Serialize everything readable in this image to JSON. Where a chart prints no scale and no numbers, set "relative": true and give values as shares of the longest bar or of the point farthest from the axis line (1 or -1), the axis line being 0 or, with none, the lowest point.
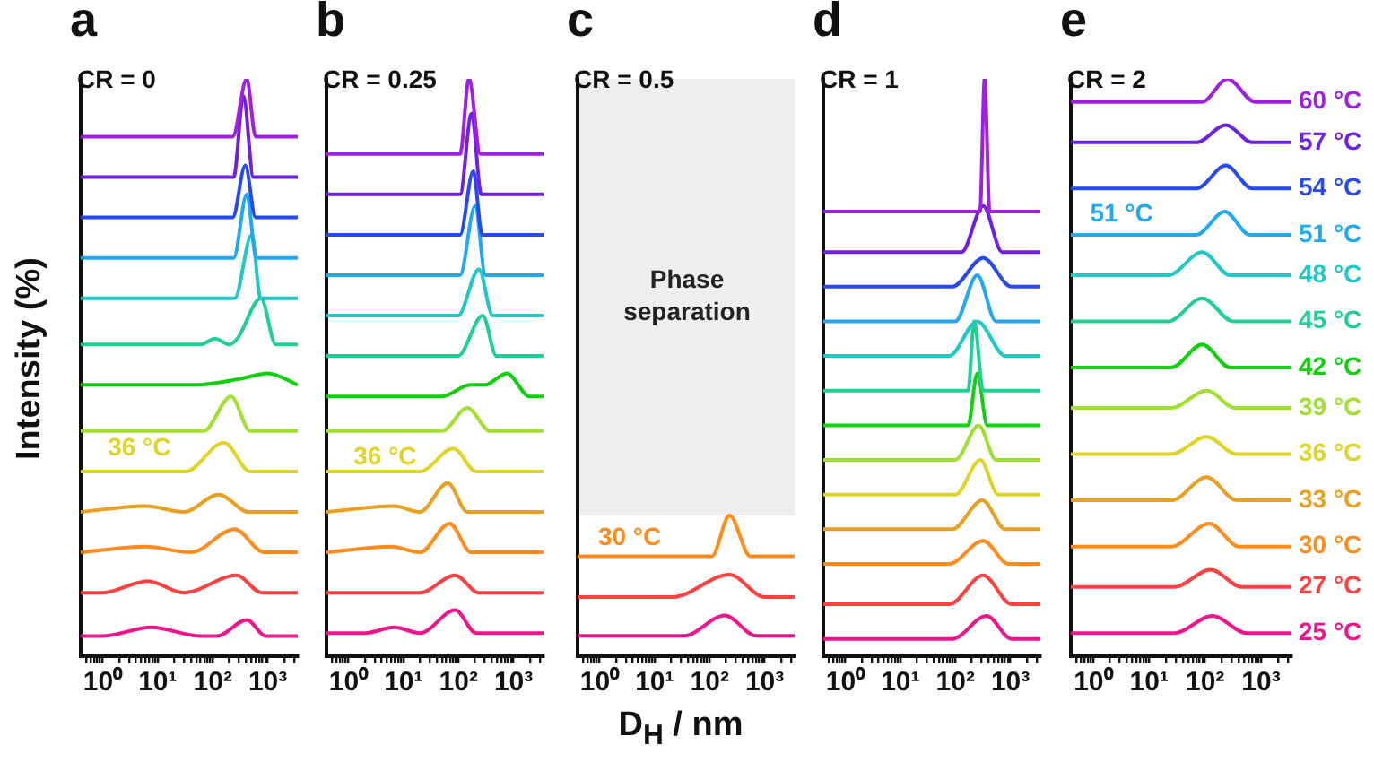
{
  "chart_data": [
    {
      "type": "line",
      "title": "a",
      "subtitle": "CR = 0",
      "ylabel": "Intensity (%)",
      "relative": true,
      "log": "x",
      "xlim": [
        0.4,
        3500
      ],
      "xticks": [
        {
          "value": 0.5,
          "label": null
        },
        {
          "value": 0.6,
          "label": null
        },
        {
          "value": 0.7,
          "label": null
        },
        {
          "value": 0.8,
          "label": null
        },
        {
          "value": 0.9,
          "label": null
        },
        {
          "value": 1,
          "label": "10⁰"
        },
        {
          "value": 2,
          "label": null
        },
        {
          "value": 3,
          "label": null
        },
        {
          "value": 4,
          "label": null
        },
        {
          "value": 5,
          "label": null
        },
        {
          "value": 6,
          "label": null
        },
        {
          "value": 7,
          "label": null
        },
        {
          "value": 8,
          "label": null
        },
        {
          "value": 9,
          "label": null
        },
        {
          "value": 10,
          "label": "10¹"
        },
        {
          "value": 20,
          "label": null
        },
        {
          "value": 30,
          "label": null
        },
        {
          "value": 40,
          "label": null
        },
        {
          "value": 50,
          "label": null
        },
        {
          "value": 60,
          "label": null
        },
        {
          "value": 70,
          "label": null
        },
        {
          "value": 80,
          "label": null
        },
        {
          "value": 90,
          "label": null
        },
        {
          "value": 100,
          "label": "10²"
        },
        {
          "value": 200,
          "label": null
        },
        {
          "value": 300,
          "label": null
        },
        {
          "value": 400,
          "label": null
        },
        {
          "value": 500,
          "label": null
        },
        {
          "value": 600,
          "label": null
        },
        {
          "value": 700,
          "label": null
        },
        {
          "value": 800,
          "label": null
        },
        {
          "value": 900,
          "label": null
        },
        {
          "value": 1000,
          "label": "10³"
        },
        {
          "value": 2000,
          "label": null
        },
        {
          "value": 3000,
          "label": null
        }
      ],
      "annotations": [
        "36 °C"
      ],
      "series": [
        {
          "color": "#a020e0",
          "x": [
            0.4,
            230,
            415,
            600,
            3500
          ],
          "values": [
            0.9,
            0.9,
            1.0,
            0.9,
            0.9
          ]
        },
        {
          "color": "#7020e0",
          "x": [
            0.4,
            240,
            360,
            550,
            3500
          ],
          "values": [
            0.83,
            0.83,
            0.97,
            0.83,
            0.83
          ]
        },
        {
          "color": "#2848f0",
          "x": [
            0.4,
            230,
            390,
            600,
            3500
          ],
          "values": [
            0.76,
            0.76,
            0.85,
            0.76,
            0.76
          ]
        },
        {
          "color": "#20a8f0",
          "x": [
            0.4,
            240,
            415,
            620,
            3500
          ],
          "values": [
            0.69,
            0.69,
            0.8,
            0.69,
            0.69
          ]
        },
        {
          "color": "#20c8c8",
          "x": [
            0.4,
            250,
            510,
            740,
            3500
          ],
          "values": [
            0.62,
            0.62,
            0.73,
            0.62,
            0.62
          ]
        },
        {
          "color": "#20d090",
          "x": [
            0.4,
            60,
            110,
            200,
            280,
            750,
            1400,
            3500
          ],
          "values": [
            0.54,
            0.54,
            0.55,
            0.54,
            0.55,
            0.62,
            0.54,
            0.54
          ]
        },
        {
          "color": "#10d010",
          "x": [
            0.4,
            50,
            300,
            1000,
            3500
          ],
          "values": [
            0.47,
            0.47,
            0.48,
            0.49,
            0.47
          ]
        },
        {
          "color": "#a0e030",
          "x": [
            0.4,
            68,
            215,
            480,
            3500
          ],
          "values": [
            0.39,
            0.39,
            0.45,
            0.39,
            0.39
          ]
        },
        {
          "color": "#e0d428",
          "x": [
            0.4,
            32,
            160,
            480,
            3500
          ],
          "values": [
            0.32,
            0.32,
            0.37,
            0.32,
            0.32
          ]
        },
        {
          "color": "#e8a020",
          "x": [
            0.4,
            6,
            30,
            128,
            450,
            3500
          ],
          "values": [
            0.25,
            0.26,
            0.25,
            0.28,
            0.25,
            0.25
          ]
        },
        {
          "color": "#ff8c1a",
          "x": [
            0.4,
            6,
            40,
            250,
            860,
            3500
          ],
          "values": [
            0.18,
            0.19,
            0.18,
            0.22,
            0.18,
            0.18
          ]
        },
        {
          "color": "#ff4040",
          "x": [
            0.4,
            1,
            6.6,
            30,
            270,
            780,
            3500
          ],
          "values": [
            0.11,
            0.11,
            0.13,
            0.11,
            0.14,
            0.11,
            0.11
          ]
        },
        {
          "color": "#f0148c",
          "x": [
            0.4,
            1,
            7.6,
            60,
            120,
            415,
            920,
            3500
          ],
          "values": [
            0.035,
            0.035,
            0.05,
            0.035,
            0.035,
            0.063,
            0.035,
            0.035
          ]
        }
      ]
    },
    {
      "type": "line",
      "title": "b",
      "subtitle": "CR = 0.25",
      "relative": true,
      "log": "x",
      "xlim": [
        0.4,
        3500
      ],
      "xticks": [
        {
          "value": 0.5,
          "label": null
        },
        {
          "value": 0.6,
          "label": null
        },
        {
          "value": 0.7,
          "label": null
        },
        {
          "value": 0.8,
          "label": null
        },
        {
          "value": 0.9,
          "label": null
        },
        {
          "value": 1,
          "label": "10⁰"
        },
        {
          "value": 2,
          "label": null
        },
        {
          "value": 3,
          "label": null
        },
        {
          "value": 4,
          "label": null
        },
        {
          "value": 5,
          "label": null
        },
        {
          "value": 6,
          "label": null
        },
        {
          "value": 7,
          "label": null
        },
        {
          "value": 8,
          "label": null
        },
        {
          "value": 9,
          "label": null
        },
        {
          "value": 10,
          "label": "10¹"
        },
        {
          "value": 20,
          "label": null
        },
        {
          "value": 30,
          "label": null
        },
        {
          "value": 40,
          "label": null
        },
        {
          "value": 50,
          "label": null
        },
        {
          "value": 60,
          "label": null
        },
        {
          "value": 70,
          "label": null
        },
        {
          "value": 80,
          "label": null
        },
        {
          "value": 90,
          "label": null
        },
        {
          "value": 100,
          "label": "10²"
        },
        {
          "value": 200,
          "label": null
        },
        {
          "value": 300,
          "label": null
        },
        {
          "value": 400,
          "label": null
        },
        {
          "value": 500,
          "label": null
        },
        {
          "value": 600,
          "label": null
        },
        {
          "value": 700,
          "label": null
        },
        {
          "value": 800,
          "label": null
        },
        {
          "value": 900,
          "label": null
        },
        {
          "value": 1000,
          "label": "10³"
        },
        {
          "value": 2000,
          "label": null
        },
        {
          "value": 3000,
          "label": null
        }
      ],
      "annotations": [
        "36 °C"
      ],
      "series": [
        {
          "color": "#a020e0",
          "x": [
            0.4,
            107,
            155,
            250,
            3500
          ],
          "values": [
            0.87,
            0.87,
            1.0,
            0.87,
            0.87
          ]
        },
        {
          "color": "#7020e0",
          "x": [
            0.4,
            107,
            173,
            260,
            3500
          ],
          "values": [
            0.8,
            0.8,
            0.94,
            0.8,
            0.8
          ]
        },
        {
          "color": "#2848f0",
          "x": [
            0.4,
            107,
            185,
            270,
            3500
          ],
          "values": [
            0.73,
            0.73,
            0.84,
            0.73,
            0.73
          ]
        },
        {
          "color": "#20a8f0",
          "x": [
            0.4,
            107,
            200,
            310,
            3500
          ],
          "values": [
            0.66,
            0.66,
            0.78,
            0.66,
            0.66
          ]
        },
        {
          "color": "#20c8c8",
          "x": [
            0.4,
            98,
            235,
            420,
            3500
          ],
          "values": [
            0.59,
            0.59,
            0.67,
            0.59,
            0.59
          ]
        },
        {
          "color": "#20d090",
          "x": [
            0.4,
            98,
            275,
            490,
            3500
          ],
          "values": [
            0.52,
            0.52,
            0.59,
            0.52,
            0.52
          ]
        },
        {
          "color": "#10d010",
          "x": [
            0.4,
            50,
            165,
            300,
            760,
            1950,
            3500
          ],
          "values": [
            0.45,
            0.45,
            0.47,
            0.47,
            0.49,
            0.45,
            0.45
          ]
        },
        {
          "color": "#a0e030",
          "x": [
            0.4,
            50,
            145,
            375,
            3500
          ],
          "values": [
            0.39,
            0.39,
            0.43,
            0.39,
            0.39
          ]
        },
        {
          "color": "#e0d428",
          "x": [
            0.4,
            20,
            81,
            210,
            3500
          ],
          "values": [
            0.32,
            0.32,
            0.36,
            0.32,
            0.32
          ]
        },
        {
          "color": "#e8a020",
          "x": [
            0.4,
            6.8,
            20,
            64,
            145,
            3500
          ],
          "values": [
            0.25,
            0.26,
            0.25,
            0.3,
            0.25,
            0.25
          ]
        },
        {
          "color": "#ff8c1a",
          "x": [
            0.4,
            6,
            20,
            69,
            170,
            3500
          ],
          "values": [
            0.18,
            0.19,
            0.18,
            0.23,
            0.18,
            0.18
          ]
        },
        {
          "color": "#ff4040",
          "x": [
            0.4,
            20,
            87,
            235,
            3500
          ],
          "values": [
            0.11,
            0.11,
            0.14,
            0.11,
            0.11
          ]
        },
        {
          "color": "#f0148c",
          "x": [
            0.4,
            2,
            6.8,
            20,
            87,
            210,
            3500
          ],
          "values": [
            0.04,
            0.04,
            0.05,
            0.04,
            0.08,
            0.04,
            0.04
          ]
        }
      ]
    },
    {
      "type": "line",
      "title": "c",
      "subtitle": "CR = 0.5",
      "xlabel": "D$_{H}$ / nm",
      "relative": true,
      "log": "x",
      "xlim": [
        0.4,
        3500
      ],
      "xticks": [
        {
          "value": 0.5,
          "label": null
        },
        {
          "value": 0.6,
          "label": null
        },
        {
          "value": 0.7,
          "label": null
        },
        {
          "value": 0.8,
          "label": null
        },
        {
          "value": 0.9,
          "label": null
        },
        {
          "value": 1,
          "label": "10⁰"
        },
        {
          "value": 2,
          "label": null
        },
        {
          "value": 3,
          "label": null
        },
        {
          "value": 4,
          "label": null
        },
        {
          "value": 5,
          "label": null
        },
        {
          "value": 6,
          "label": null
        },
        {
          "value": 7,
          "label": null
        },
        {
          "value": 8,
          "label": null
        },
        {
          "value": 9,
          "label": null
        },
        {
          "value": 10,
          "label": "10¹"
        },
        {
          "value": 20,
          "label": null
        },
        {
          "value": 30,
          "label": null
        },
        {
          "value": 40,
          "label": null
        },
        {
          "value": 50,
          "label": null
        },
        {
          "value": 60,
          "label": null
        },
        {
          "value": 70,
          "label": null
        },
        {
          "value": 80,
          "label": null
        },
        {
          "value": 90,
          "label": null
        },
        {
          "value": 100,
          "label": "10²"
        },
        {
          "value": 200,
          "label": null
        },
        {
          "value": 300,
          "label": null
        },
        {
          "value": 400,
          "label": null
        },
        {
          "value": 500,
          "label": null
        },
        {
          "value": 600,
          "label": null
        },
        {
          "value": 700,
          "label": null
        },
        {
          "value": 800,
          "label": null
        },
        {
          "value": 900,
          "label": null
        },
        {
          "value": 1000,
          "label": "10³"
        },
        {
          "value": 2000,
          "label": null
        },
        {
          "value": 3000,
          "label": null
        }
      ],
      "bands": [
        {
          "axis": "y",
          "from": 1.0,
          "to": 4.1,
          "label": "Phase separation",
          "color": "#eeeeee"
        }
      ],
      "annotations": [
        "30 °C"
      ],
      "series": [
        {
          "color": "#ff8c1a",
          "x": [
            0.4,
            110,
            230,
            550,
            3500
          ],
          "values": [
            0.71,
            0.71,
            1.0,
            0.71,
            0.71
          ]
        },
        {
          "color": "#ff4040",
          "x": [
            0.4,
            21,
            230,
            1000,
            3500
          ],
          "values": [
            0.42,
            0.42,
            0.58,
            0.42,
            0.42
          ]
        },
        {
          "color": "#f0148c",
          "x": [
            0.4,
            34,
            190,
            700,
            3500
          ],
          "values": [
            0.145,
            0.145,
            0.29,
            0.145,
            0.145
          ]
        }
      ]
    },
    {
      "type": "line",
      "title": "d",
      "subtitle": "CR = 1",
      "relative": true,
      "log": "x",
      "xlim": [
        0.4,
        3500
      ],
      "xticks": [
        {
          "value": 0.5,
          "label": null
        },
        {
          "value": 0.6,
          "label": null
        },
        {
          "value": 0.7,
          "label": null
        },
        {
          "value": 0.8,
          "label": null
        },
        {
          "value": 0.9,
          "label": null
        },
        {
          "value": 1,
          "label": "10⁰"
        },
        {
          "value": 2,
          "label": null
        },
        {
          "value": 3,
          "label": null
        },
        {
          "value": 4,
          "label": null
        },
        {
          "value": 5,
          "label": null
        },
        {
          "value": 6,
          "label": null
        },
        {
          "value": 7,
          "label": null
        },
        {
          "value": 8,
          "label": null
        },
        {
          "value": 9,
          "label": null
        },
        {
          "value": 10,
          "label": "10¹"
        },
        {
          "value": 20,
          "label": null
        },
        {
          "value": 30,
          "label": null
        },
        {
          "value": 40,
          "label": null
        },
        {
          "value": 50,
          "label": null
        },
        {
          "value": 60,
          "label": null
        },
        {
          "value": 70,
          "label": null
        },
        {
          "value": 80,
          "label": null
        },
        {
          "value": 90,
          "label": null
        },
        {
          "value": 100,
          "label": "10²"
        },
        {
          "value": 200,
          "label": null
        },
        {
          "value": 300,
          "label": null
        },
        {
          "value": 400,
          "label": null
        },
        {
          "value": 500,
          "label": null
        },
        {
          "value": 600,
          "label": null
        },
        {
          "value": 700,
          "label": null
        },
        {
          "value": 800,
          "label": null
        },
        {
          "value": 900,
          "label": null
        },
        {
          "value": 1000,
          "label": "10³"
        },
        {
          "value": 2000,
          "label": null
        },
        {
          "value": 3000,
          "label": null
        }
      ],
      "series": [
        {
          "color": "#a020e0",
          "x": [
            0.4,
            280,
            340,
            420,
            3500
          ],
          "values": [
            0.77,
            0.77,
            1.0,
            0.77,
            0.77
          ]
        },
        {
          "color": "#7020e0",
          "x": [
            0.4,
            130,
            320,
            710,
            3500
          ],
          "values": [
            0.7,
            0.7,
            0.78,
            0.7,
            0.7
          ]
        },
        {
          "color": "#2848f0",
          "x": [
            0.4,
            88,
            320,
            1050,
            3500
          ],
          "values": [
            0.64,
            0.64,
            0.69,
            0.64,
            0.64
          ]
        },
        {
          "color": "#20a8f0",
          "x": [
            0.4,
            100,
            250,
            550,
            3500
          ],
          "values": [
            0.58,
            0.58,
            0.66,
            0.58,
            0.58
          ]
        },
        {
          "color": "#20c8c8",
          "x": [
            0.4,
            77,
            250,
            810,
            3500
          ],
          "values": [
            0.52,
            0.52,
            0.58,
            0.52,
            0.52
          ]
        },
        {
          "color": "#20d090",
          "x": [
            0.4,
            170,
            220,
            320,
            3500
          ],
          "values": [
            0.46,
            0.46,
            0.58,
            0.46,
            0.46
          ]
        },
        {
          "color": "#10d010",
          "x": [
            0.4,
            170,
            250,
            380,
            3500
          ],
          "values": [
            0.4,
            0.4,
            0.49,
            0.4,
            0.4
          ]
        },
        {
          "color": "#a0e030",
          "x": [
            0.4,
            100,
            265,
            550,
            3500
          ],
          "values": [
            0.34,
            0.34,
            0.4,
            0.34,
            0.34
          ]
        },
        {
          "color": "#e0d428",
          "x": [
            0.4,
            100,
            285,
            600,
            3500
          ],
          "values": [
            0.28,
            0.28,
            0.34,
            0.28,
            0.28
          ]
        },
        {
          "color": "#e8a020",
          "x": [
            0.4,
            88,
            310,
            810,
            3500
          ],
          "values": [
            0.22,
            0.22,
            0.27,
            0.22,
            0.22
          ]
        },
        {
          "color": "#ff8c1a",
          "x": [
            0.4,
            77,
            320,
            920,
            3500
          ],
          "values": [
            0.16,
            0.16,
            0.2,
            0.16,
            0.16
          ]
        },
        {
          "color": "#ff4040",
          "x": [
            0.4,
            77,
            320,
            1050,
            3500
          ],
          "values": [
            0.09,
            0.09,
            0.14,
            0.09,
            0.09
          ]
        },
        {
          "color": "#f0148c",
          "x": [
            0.4,
            88,
            370,
            1050,
            3500
          ],
          "values": [
            0.03,
            0.03,
            0.07,
            0.03,
            0.03
          ]
        }
      ]
    },
    {
      "type": "line",
      "title": "e",
      "subtitle": "CR = 2",
      "relative": true,
      "log": "x",
      "xlim": [
        0.4,
        3500
      ],
      "xticks": [
        {
          "value": 0.5,
          "label": null
        },
        {
          "value": 0.6,
          "label": null
        },
        {
          "value": 0.7,
          "label": null
        },
        {
          "value": 0.8,
          "label": null
        },
        {
          "value": 0.9,
          "label": null
        },
        {
          "value": 1,
          "label": "10⁰"
        },
        {
          "value": 2,
          "label": null
        },
        {
          "value": 3,
          "label": null
        },
        {
          "value": 4,
          "label": null
        },
        {
          "value": 5,
          "label": null
        },
        {
          "value": 6,
          "label": null
        },
        {
          "value": 7,
          "label": null
        },
        {
          "value": 8,
          "label": null
        },
        {
          "value": 9,
          "label": null
        },
        {
          "value": 10,
          "label": "10¹"
        },
        {
          "value": 20,
          "label": null
        },
        {
          "value": 30,
          "label": null
        },
        {
          "value": 40,
          "label": null
        },
        {
          "value": 50,
          "label": null
        },
        {
          "value": 60,
          "label": null
        },
        {
          "value": 70,
          "label": null
        },
        {
          "value": 80,
          "label": null
        },
        {
          "value": 90,
          "label": null
        },
        {
          "value": 100,
          "label": "10²"
        },
        {
          "value": 200,
          "label": null
        },
        {
          "value": 300,
          "label": null
        },
        {
          "value": 400,
          "label": null
        },
        {
          "value": 500,
          "label": null
        },
        {
          "value": 600,
          "label": null
        },
        {
          "value": 700,
          "label": null
        },
        {
          "value": 800,
          "label": null
        },
        {
          "value": 900,
          "label": null
        },
        {
          "value": 1000,
          "label": "10³"
        },
        {
          "value": 2000,
          "label": null
        },
        {
          "value": 3000,
          "label": null
        }
      ],
      "annotations": [
        "51 °C"
      ],
      "series": [
        {
          "name": "60 °C",
          "color": "#a020e0",
          "x": [
            0.4,
            89,
            250,
            790,
            3500
          ],
          "values": [
            0.96,
            0.96,
            1.0,
            0.96,
            0.96
          ]
        },
        {
          "name": "57 °C",
          "color": "#7020e0",
          "x": [
            0.4,
            70,
            235,
            700,
            3500
          ],
          "values": [
            0.89,
            0.89,
            0.92,
            0.89,
            0.89
          ]
        },
        {
          "name": "54 °C",
          "color": "#2848f0",
          "x": [
            0.4,
            70,
            235,
            700,
            3500
          ],
          "values": [
            0.81,
            0.81,
            0.85,
            0.81,
            0.81
          ]
        },
        {
          "name": "51 °C",
          "color": "#20a8f0",
          "x": [
            0.4,
            70,
            225,
            630,
            3500
          ],
          "values": [
            0.73,
            0.73,
            0.77,
            0.73,
            0.73
          ]
        },
        {
          "name": "48 °C",
          "color": "#20c8c8",
          "x": [
            0.4,
            22,
            89,
            280,
            3500
          ],
          "values": [
            0.66,
            0.66,
            0.7,
            0.66,
            0.66
          ]
        },
        {
          "name": "45 °C",
          "color": "#20d090",
          "x": [
            0.4,
            22,
            89,
            320,
            3500
          ],
          "values": [
            0.58,
            0.58,
            0.62,
            0.58,
            0.58
          ]
        },
        {
          "name": "42 °C",
          "color": "#10d010",
          "x": [
            0.4,
            25,
            89,
            280,
            3500
          ],
          "values": [
            0.5,
            0.5,
            0.54,
            0.5,
            0.5
          ]
        },
        {
          "name": "39 °C",
          "color": "#a0e030",
          "x": [
            0.4,
            25,
            107,
            350,
            3500
          ],
          "values": [
            0.43,
            0.43,
            0.46,
            0.43,
            0.43
          ]
        },
        {
          "name": "36 °C",
          "color": "#e0d428",
          "x": [
            0.4,
            25,
            107,
            370,
            3500
          ],
          "values": [
            0.35,
            0.35,
            0.38,
            0.35,
            0.35
          ]
        },
        {
          "name": "33 °C",
          "color": "#e8a020",
          "x": [
            0.4,
            25,
            107,
            370,
            3500
          ],
          "values": [
            0.27,
            0.27,
            0.31,
            0.27,
            0.27
          ]
        },
        {
          "name": "30 °C",
          "color": "#ff8c1a",
          "x": [
            0.4,
            25,
            120,
            400,
            3500
          ],
          "values": [
            0.19,
            0.19,
            0.23,
            0.19,
            0.19
          ]
        },
        {
          "name": "27 °C",
          "color": "#ff4040",
          "x": [
            0.4,
            28,
            126,
            450,
            3500
          ],
          "values": [
            0.12,
            0.12,
            0.15,
            0.12,
            0.12
          ]
        },
        {
          "name": "25 °C",
          "color": "#f0148c",
          "x": [
            0.4,
            28,
            135,
            560,
            3500
          ],
          "values": [
            0.04,
            0.04,
            0.07,
            0.04,
            0.04
          ]
        }
      ]
    }
  ]
}
